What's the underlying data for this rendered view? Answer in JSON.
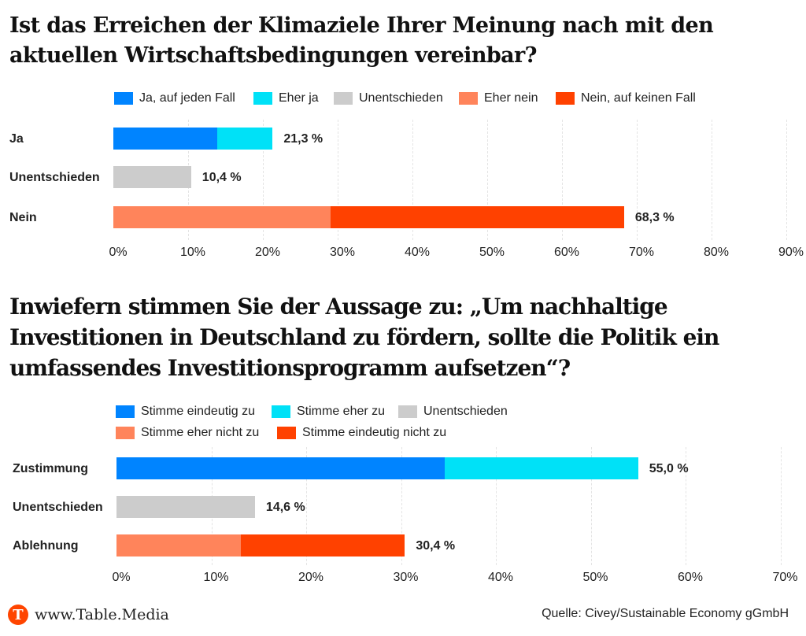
{
  "chart_data": [
    {
      "type": "bar",
      "orientation": "horizontal",
      "stacked": true,
      "title": "Ist das Erreichen der Klimaziele Ihrer Meinung nach mit den aktuellen Wirtschaftsbedingungen vereinbar?",
      "categories": [
        "Ja",
        "Unentschieden",
        "Nein"
      ],
      "series": [
        {
          "name": "Ja, auf jeden Fall",
          "color": "#0084ff",
          "values": [
            13.9,
            0,
            0
          ]
        },
        {
          "name": "Eher ja",
          "color": "#00e1f7",
          "values": [
            7.4,
            0,
            0
          ]
        },
        {
          "name": "Unentschieden",
          "color": "#cccccc",
          "values": [
            0,
            10.4,
            0
          ]
        },
        {
          "name": "Eher nein",
          "color": "#ff845b",
          "values": [
            0,
            0,
            29.1
          ]
        },
        {
          "name": "Nein, auf keinen Fall",
          "color": "#ff4100",
          "values": [
            0,
            0,
            39.2
          ]
        }
      ],
      "totals": [
        "21,3 %",
        "10,4 %",
        "68,3 %"
      ],
      "xlim": [
        0,
        90
      ],
      "xticks": [
        "0%",
        "10%",
        "20%",
        "30%",
        "40%",
        "50%",
        "60%",
        "70%",
        "80%",
        "90%"
      ],
      "xlabel": "",
      "ylabel": "",
      "grid": true,
      "legend": "top"
    },
    {
      "type": "bar",
      "orientation": "horizontal",
      "stacked": true,
      "title": "Inwiefern stimmen Sie der Aussage zu: „Um nachhaltige Investitionen in Deutschland zu fördern, sollte die Politik ein umfassendes Investitionsprogramm aufsetzen“?",
      "categories": [
        "Zustimmung",
        "Unentschieden",
        "Ablehnung"
      ],
      "series": [
        {
          "name": "Stimme eindeutig zu",
          "color": "#0084ff",
          "values": [
            34.6,
            0,
            0
          ]
        },
        {
          "name": "Stimme eher zu",
          "color": "#00e1f7",
          "values": [
            20.4,
            0,
            0
          ]
        },
        {
          "name": "Unentschieden",
          "color": "#cccccc",
          "values": [
            0,
            14.6,
            0
          ]
        },
        {
          "name": "Stimme eher nicht zu",
          "color": "#ff845b",
          "values": [
            0,
            0,
            13.1
          ]
        },
        {
          "name": "Stimme eindeutig nicht zu",
          "color": "#ff4100",
          "values": [
            0,
            0,
            17.3
          ]
        }
      ],
      "totals": [
        "55,0 %",
        "14,6 %",
        "30,4 %"
      ],
      "xlim": [
        0,
        70
      ],
      "xticks": [
        "0%",
        "10%",
        "20%",
        "30%",
        "40%",
        "50%",
        "60%",
        "70%"
      ],
      "xlabel": "",
      "ylabel": "",
      "grid": true,
      "legend": "top"
    }
  ],
  "footer": {
    "logo_letter": "T",
    "site": "www.Table.Media",
    "source": "Quelle: Civey/Sustainable Economy gGmbH"
  }
}
